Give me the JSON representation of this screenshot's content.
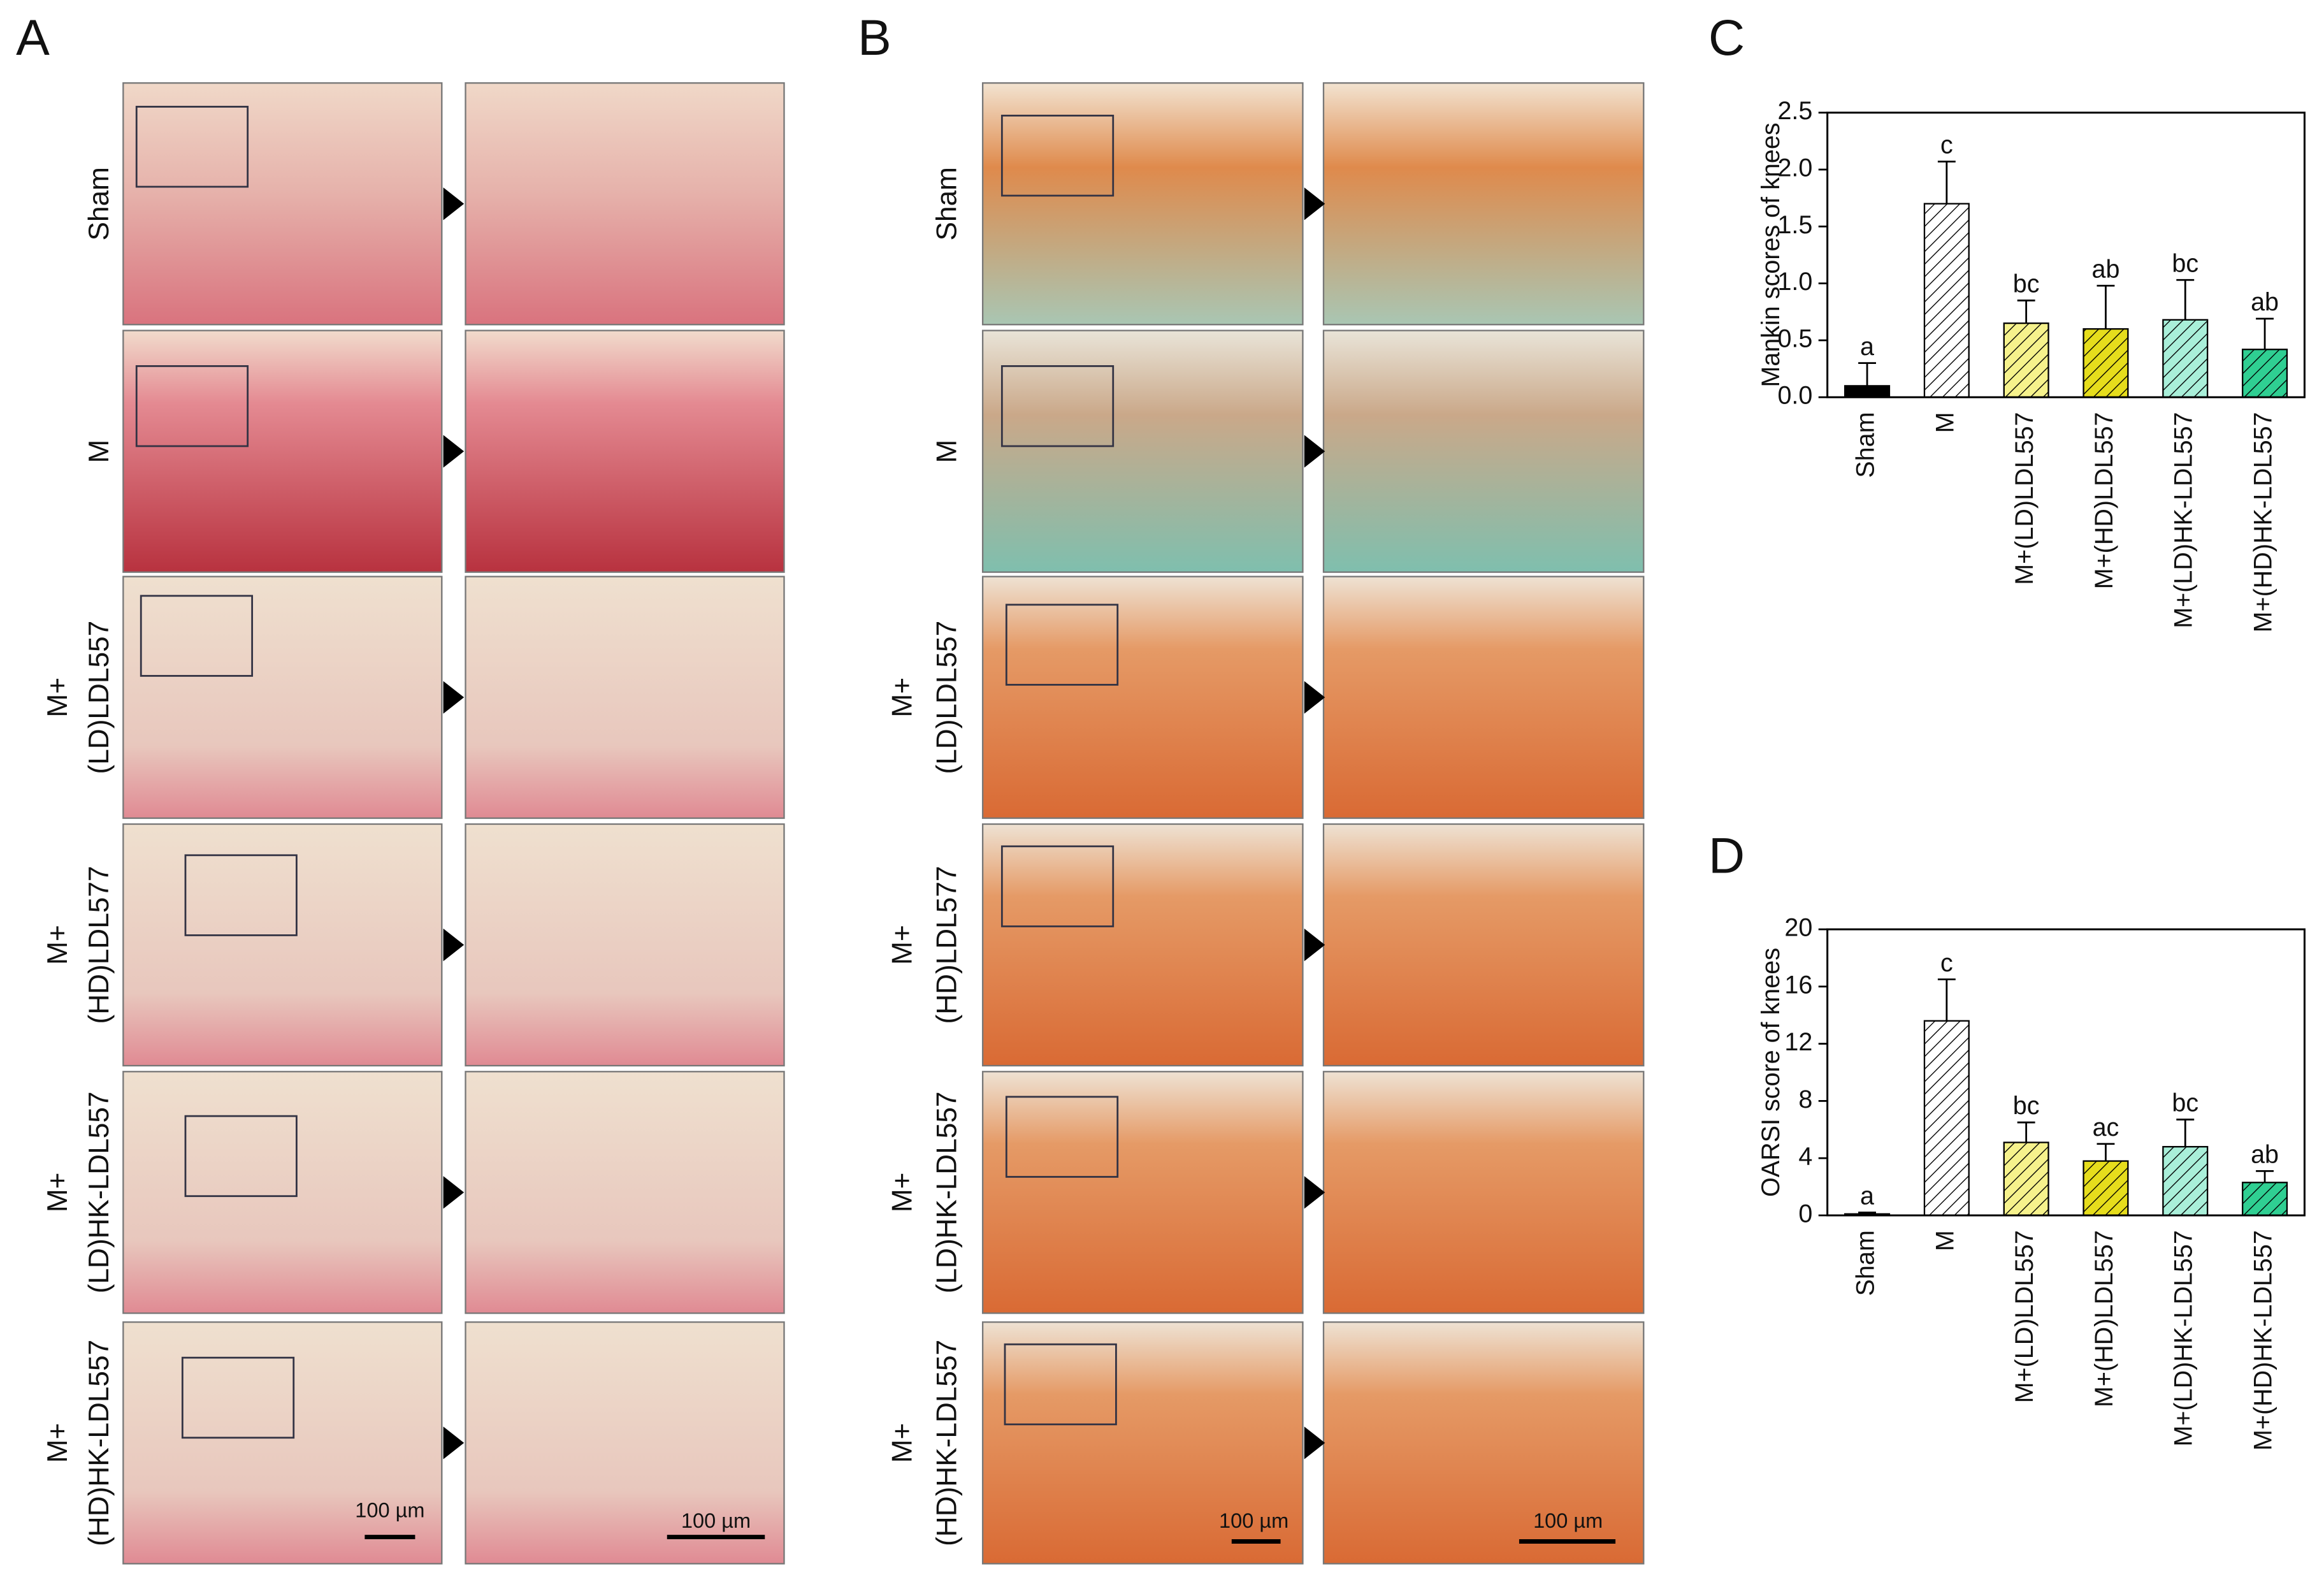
{
  "panels": [
    {
      "label": "A",
      "rows": [
        [
          "Sham"
        ],
        [
          "M"
        ],
        [
          "M+",
          "(LD)LDL557"
        ],
        [
          "M+",
          "(HD)LDL577"
        ],
        [
          "M+",
          "(LD)HK-LDL557"
        ],
        [
          "M+",
          "(HD)HK-LDL557"
        ]
      ],
      "scale_bars": [
        "100 µm",
        "100 µm"
      ]
    },
    {
      "label": "B",
      "rows": [
        [
          "Sham"
        ],
        [
          "M"
        ],
        [
          "M+",
          "(LD)LDL557"
        ],
        [
          "M+",
          "(HD)LDL577"
        ],
        [
          "M+",
          "(LD)HK-LDL557"
        ],
        [
          "M+",
          "(HD)HK-LDL557"
        ]
      ],
      "scale_bars": [
        "100 µm",
        "100 µm"
      ]
    }
  ],
  "chart_data": [
    {
      "type": "bar",
      "panel_label": "C",
      "y_label": "Mankin scores of knees",
      "categories": [
        "Sham",
        "M",
        "M+(LD)LDL557",
        "M+(HD)LDL557",
        "M+(LD)HK-LDL557",
        "M+(HD)HK-LDL557"
      ],
      "values": [
        0.1,
        1.7,
        0.65,
        0.6,
        0.68,
        0.42
      ],
      "errors": [
        0.2,
        0.37,
        0.2,
        0.38,
        0.35,
        0.27
      ],
      "annotations": [
        "a",
        "c",
        "bc",
        "ab",
        "bc",
        "ab"
      ],
      "colors": [
        "#000000",
        "#ffffff",
        "#f6f28c",
        "#e6dd1c",
        "#a9efd9",
        "#2fcf92"
      ],
      "hatch": [
        false,
        true,
        true,
        true,
        true,
        true
      ],
      "ylim": [
        0,
        2.5
      ],
      "yticks": [
        {
          "value": 0,
          "label": "0.0"
        },
        0.5,
        {
          "value": 1,
          "label": "1.0"
        },
        1.5,
        {
          "value": 2,
          "label": "2.0"
        },
        2.5
      ]
    },
    {
      "type": "bar",
      "panel_label": "D",
      "y_label": "OARSI score of knees",
      "categories": [
        "Sham",
        "M",
        "M+(LD)LDL557",
        "M+(HD)LDL557",
        "M+(LD)HK-LDL557",
        "M+(HD)HK-LDL557"
      ],
      "values": [
        0.1,
        13.6,
        5.1,
        3.8,
        4.8,
        2.3
      ],
      "errors": [
        0.1,
        2.9,
        1.4,
        1.2,
        1.9,
        0.8
      ],
      "annotations": [
        "a",
        "c",
        "bc",
        "ac",
        "bc",
        "ab"
      ],
      "colors": [
        "#000000",
        "#ffffff",
        "#f6f28c",
        "#e6dd1c",
        "#a9efd9",
        "#2fcf92"
      ],
      "hatch": [
        false,
        true,
        true,
        true,
        true,
        true
      ],
      "ylim": [
        0,
        20
      ],
      "yticks": [
        0,
        4,
        8,
        12,
        16,
        20
      ]
    }
  ]
}
